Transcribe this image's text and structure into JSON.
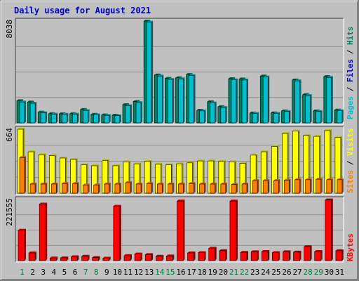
{
  "title": "Daily usage for August 2021",
  "colors": {
    "background": "#c0c0c0",
    "panel": "#c0c0c0",
    "pages": "#00c0d0",
    "files": "#0000d0",
    "hits": "#008060",
    "sites": "#ff8000",
    "visits": "#ffff00",
    "kbytes": "#ff0000",
    "weekend_label": "#008040",
    "weekday_label": "#000000"
  },
  "chart_data": [
    {
      "type": "bar",
      "panel": "pages-files-hits",
      "axis_max_label": "8038",
      "ylim": [
        0,
        8038
      ],
      "categories": [
        "1",
        "2",
        "3",
        "4",
        "5",
        "6",
        "7",
        "8",
        "9",
        "10",
        "11",
        "12",
        "13",
        "14",
        "15",
        "16",
        "17",
        "18",
        "19",
        "20",
        "21",
        "22",
        "23",
        "24",
        "25",
        "26",
        "27",
        "28",
        "29",
        "30",
        "31"
      ],
      "series": [
        {
          "name": "Hits",
          "values": [
            1750,
            1650,
            850,
            730,
            720,
            730,
            1060,
            680,
            630,
            610,
            1440,
            1690,
            8038,
            3780,
            3510,
            3560,
            3820,
            1000,
            1670,
            1280,
            3490,
            3470,
            780,
            3700,
            790,
            950,
            3390,
            2230,
            950,
            3660,
            1010
          ]
        },
        {
          "name": "Files",
          "values": [
            1650,
            1550,
            800,
            690,
            680,
            690,
            980,
            640,
            590,
            570,
            1360,
            1600,
            7950,
            3700,
            3430,
            3480,
            3740,
            950,
            1580,
            1210,
            3400,
            3390,
            740,
            3620,
            750,
            900,
            3320,
            2160,
            900,
            3590,
            960
          ]
        },
        {
          "name": "Pages",
          "values": [
            1650,
            1550,
            800,
            690,
            680,
            690,
            980,
            640,
            590,
            570,
            1360,
            1600,
            7950,
            3700,
            3430,
            3480,
            3740,
            950,
            1580,
            1210,
            3400,
            3390,
            740,
            3620,
            750,
            900,
            3320,
            2160,
            900,
            3590,
            960
          ]
        }
      ],
      "legend": [
        "Pages",
        "Files",
        "Hits"
      ]
    },
    {
      "type": "bar",
      "panel": "sites-visits",
      "axis_max_label": "664",
      "ylim": [
        0,
        664
      ],
      "categories": [
        "1",
        "2",
        "3",
        "4",
        "5",
        "6",
        "7",
        "8",
        "9",
        "10",
        "11",
        "12",
        "13",
        "14",
        "15",
        "16",
        "17",
        "18",
        "19",
        "20",
        "21",
        "22",
        "23",
        "24",
        "25",
        "26",
        "27",
        "28",
        "29",
        "30",
        "31"
      ],
      "series": [
        {
          "name": "Visits",
          "values": [
            664,
            430,
            400,
            390,
            365,
            350,
            295,
            285,
            340,
            285,
            325,
            305,
            330,
            300,
            295,
            305,
            315,
            335,
            335,
            330,
            325,
            310,
            395,
            430,
            485,
            620,
            645,
            600,
            590,
            650,
            580
          ]
        },
        {
          "name": "Sites",
          "values": [
            370,
            95,
            95,
            95,
            100,
            100,
            85,
            85,
            95,
            95,
            110,
            95,
            100,
            95,
            95,
            95,
            100,
            95,
            95,
            95,
            90,
            95,
            130,
            130,
            130,
            135,
            140,
            140,
            145,
            140,
            140
          ]
        }
      ],
      "legend": [
        "Sites",
        "Visits"
      ]
    },
    {
      "type": "bar",
      "panel": "kbytes",
      "axis_max_label": "221555",
      "ylim": [
        0,
        221555
      ],
      "categories": [
        "1",
        "2",
        "3",
        "4",
        "5",
        "6",
        "7",
        "8",
        "9",
        "10",
        "11",
        "12",
        "13",
        "14",
        "15",
        "16",
        "17",
        "18",
        "19",
        "20",
        "21",
        "22",
        "23",
        "24",
        "25",
        "26",
        "27",
        "28",
        "29",
        "30",
        "31"
      ],
      "series": [
        {
          "name": "KBytes",
          "values": [
            110000,
            28000,
            205000,
            9500,
            10000,
            14000,
            16000,
            11000,
            9000,
            197000,
            18000,
            24000,
            22000,
            16000,
            17000,
            216000,
            28000,
            29000,
            45000,
            36000,
            216000,
            30000,
            32000,
            33000,
            29000,
            32000,
            31000,
            51000,
            33000,
            220000,
            36000
          ]
        }
      ],
      "legend": [
        "KBytes"
      ]
    }
  ],
  "x_labels": [
    "1",
    "2",
    "3",
    "4",
    "5",
    "6",
    "7",
    "8",
    "9",
    "10",
    "11",
    "12",
    "13",
    "14",
    "15",
    "16",
    "17",
    "18",
    "19",
    "20",
    "21",
    "22",
    "23",
    "24",
    "25",
    "26",
    "27",
    "28",
    "29",
    "30",
    "31"
  ],
  "weekend_days": [
    1,
    7,
    8,
    14,
    15,
    21,
    22,
    28,
    29
  ]
}
